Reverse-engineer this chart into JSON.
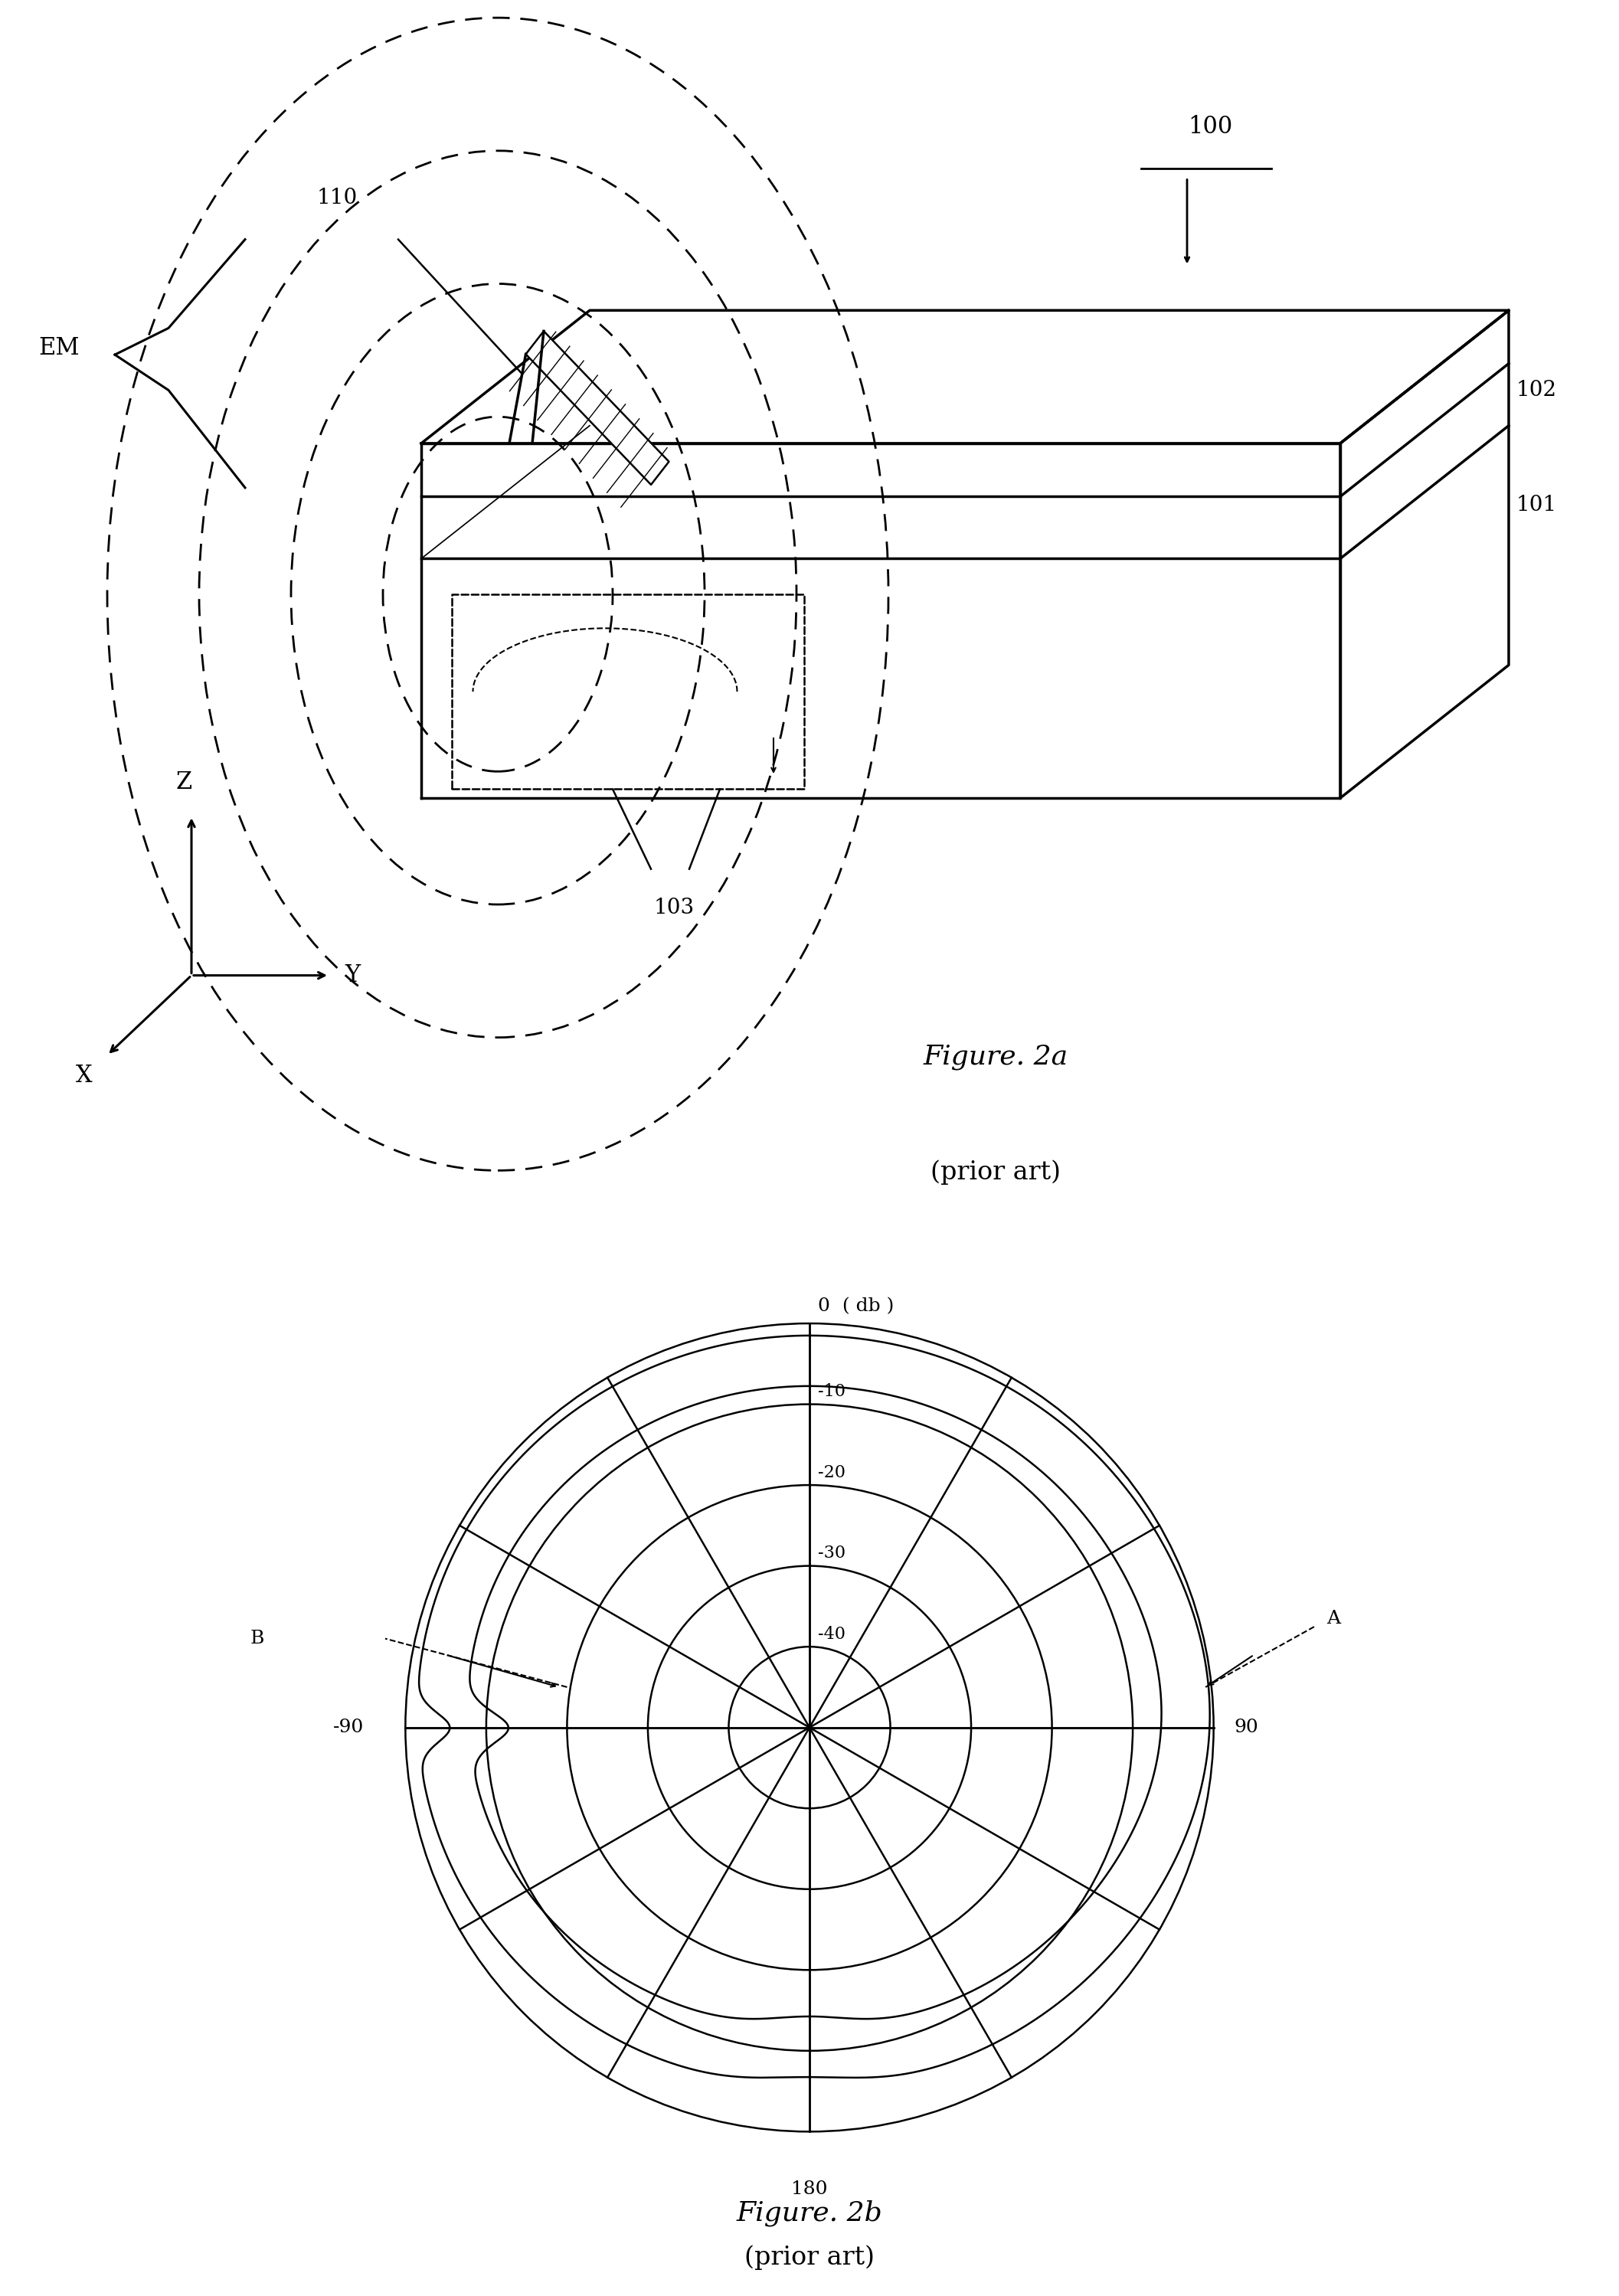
{
  "fig_title_a": "Figure. 2a",
  "fig_subtitle_a": "(prior art)",
  "fig_title_b": "Figure. 2b",
  "fig_subtitle_b": "(prior art)",
  "label_100": "100",
  "label_101": "101",
  "label_102": "102",
  "label_103": "103",
  "label_110": "110",
  "label_EM": "EM",
  "label_0db": "0  ( db )",
  "label_m10": "-10",
  "label_m20": "-20",
  "label_m30": "-30",
  "label_m40": "-40",
  "label_90": "90",
  "label_m90": "-90",
  "label_180": "180",
  "label_A": "A",
  "label_B": "B",
  "bg_color": "#ffffff",
  "line_color": "#000000"
}
